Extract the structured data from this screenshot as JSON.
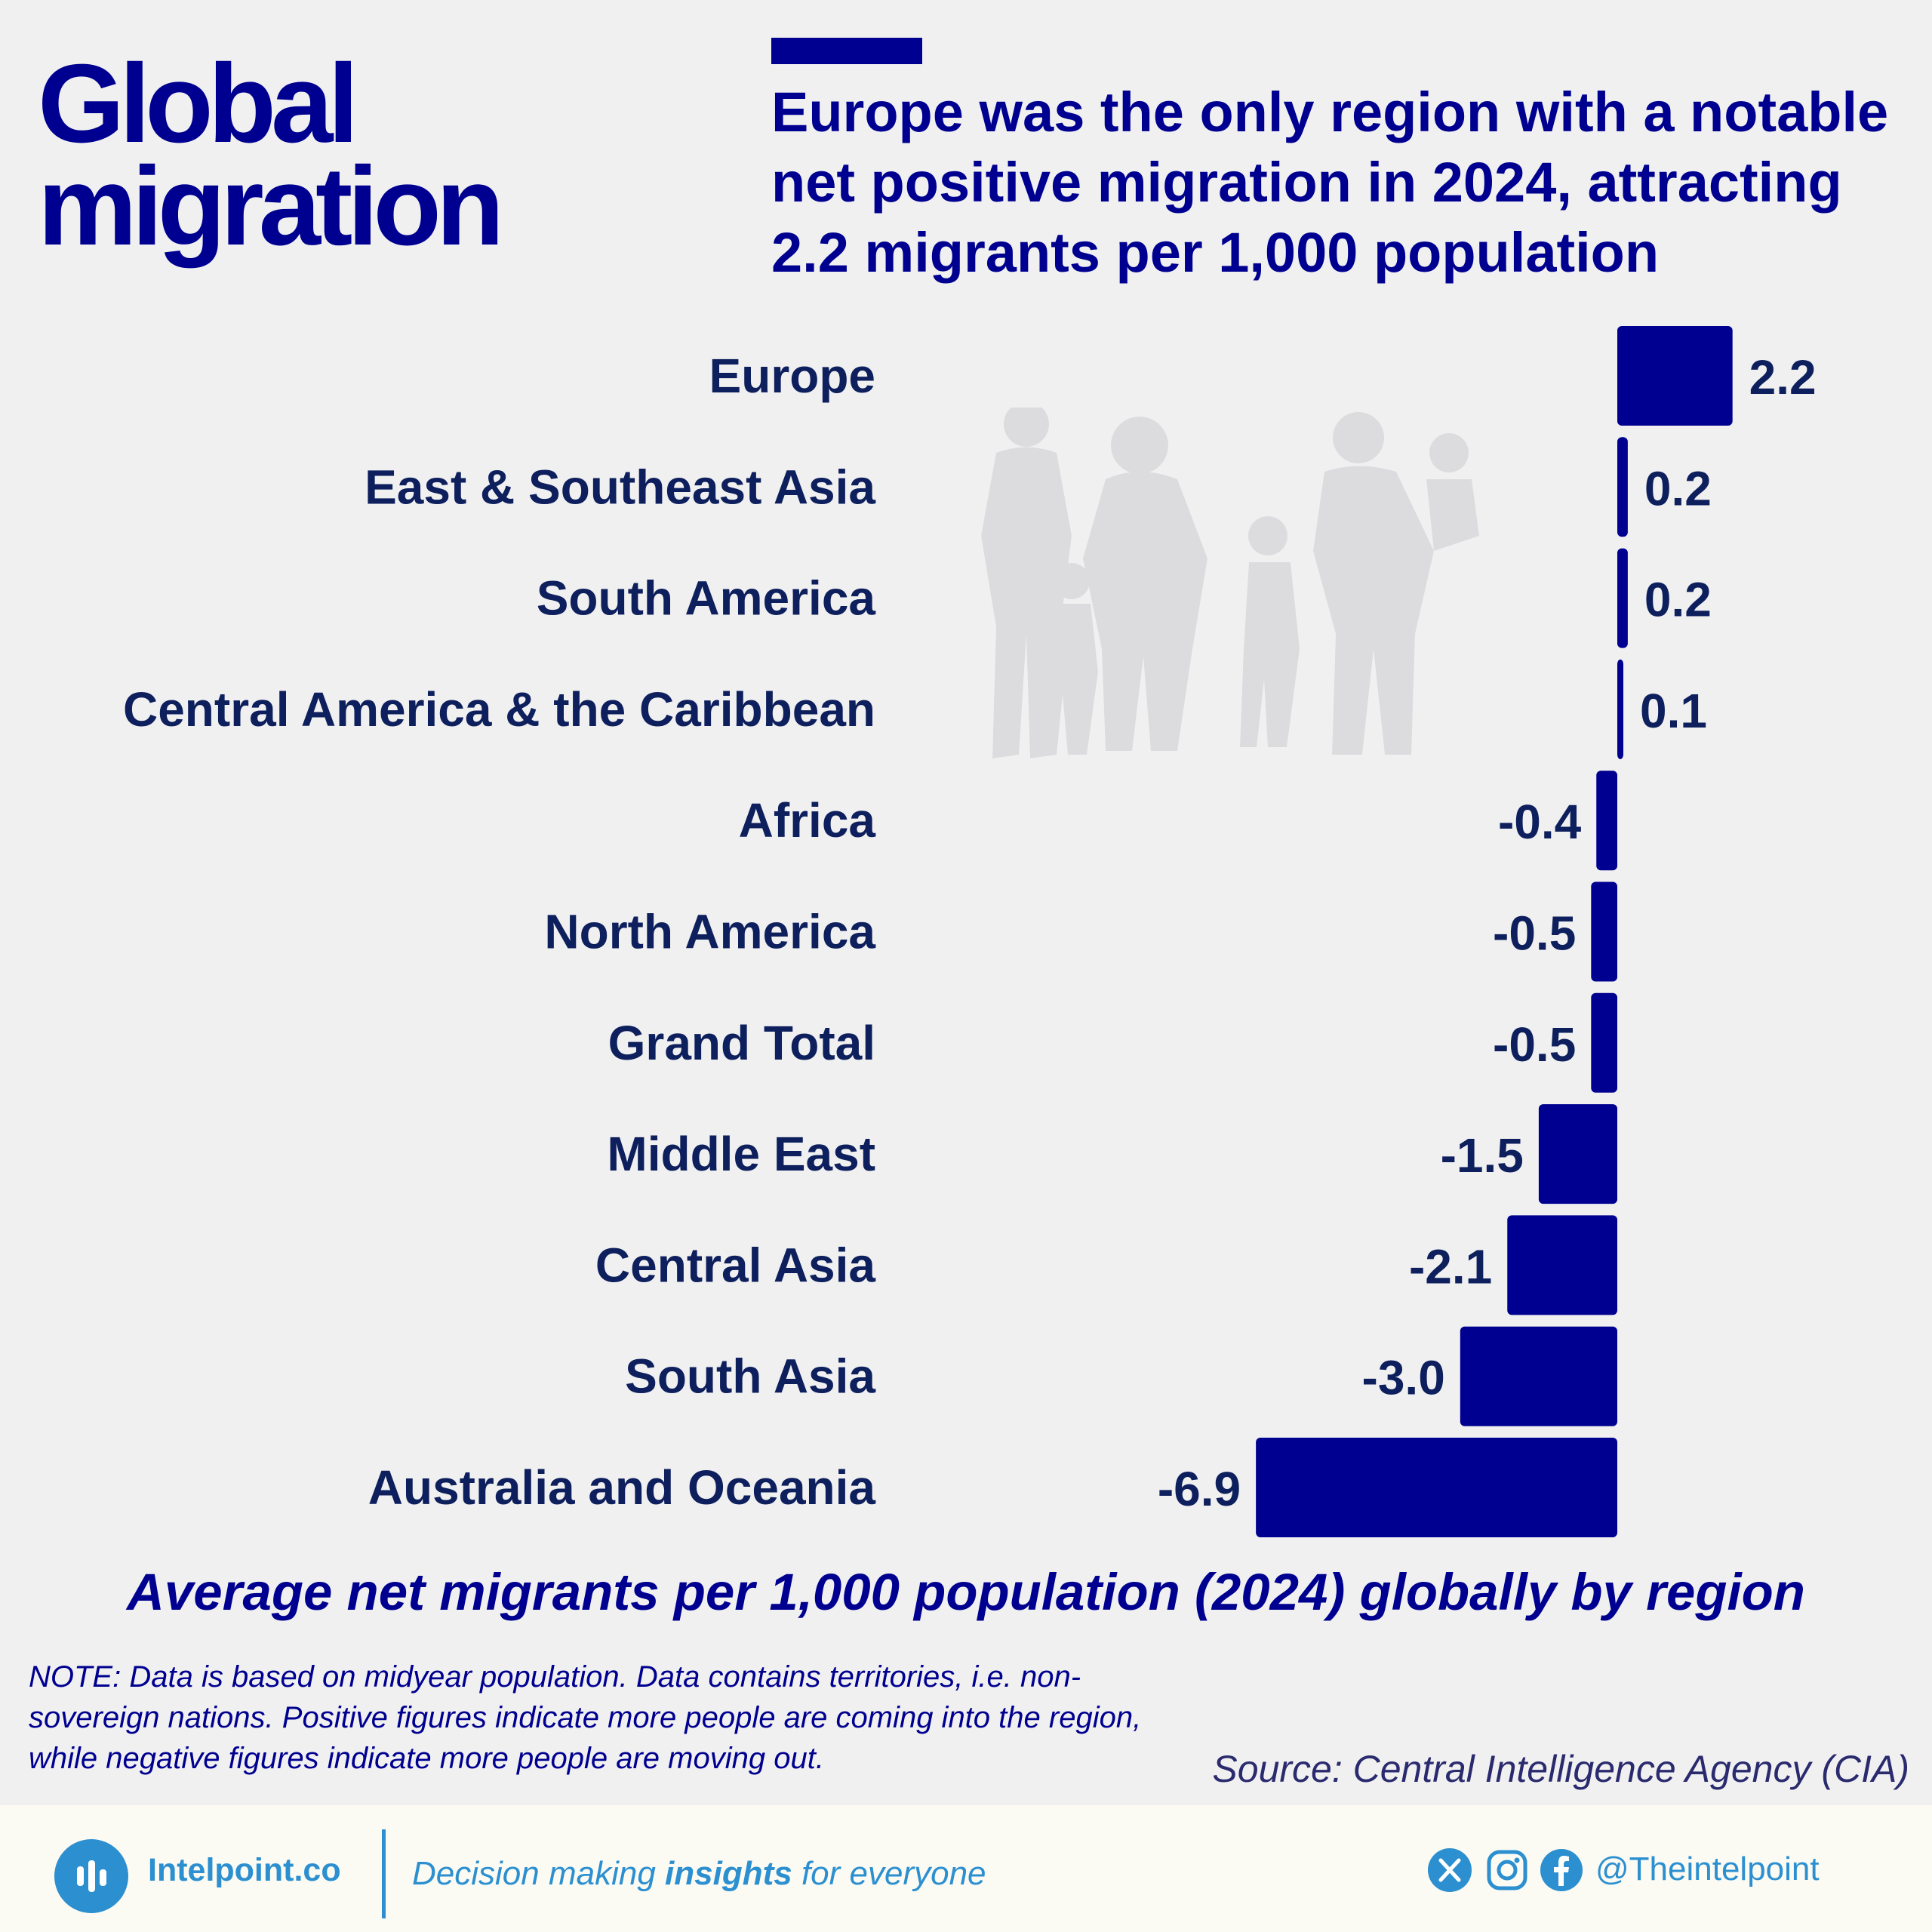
{
  "title": "Global\nmigration",
  "subtitle": "Europe was the only region with a notable net positive migration in 2024, attracting 2.2 migrants per 1,000 population",
  "chart_data": {
    "type": "bar",
    "orientation": "horizontal",
    "categories": [
      "Europe",
      "East & Southeast Asia",
      "South America",
      "Central America & the Caribbean",
      "Africa",
      "North America",
      "Grand Total",
      "Middle East",
      "Central Asia",
      "South Asia",
      "Australia and Oceania"
    ],
    "values": [
      2.2,
      0.2,
      0.2,
      0.1,
      -0.4,
      -0.5,
      -0.5,
      -1.5,
      -2.1,
      -3.0,
      -6.9
    ],
    "value_labels": [
      "2.2",
      "0.2",
      "0.2",
      "0.1",
      "-0.4",
      "-0.5",
      "-0.5",
      "-1.5",
      "-2.1",
      "-3.0",
      "-6.9"
    ],
    "xlim": [
      -6.9,
      2.2
    ],
    "bar_color": "#000090",
    "grid": false,
    "xlabel": "Average net migrants per 1,000 population (2024) globally by region"
  },
  "note": "NOTE: Data is based on midyear population. Data contains territories, i.e. non-sovereign nations. Positive figures indicate more people are coming into the region, while negative figures indicate more people are moving out.",
  "source": "Source: Central Intelligence Agency (CIA)",
  "footer": {
    "brand": "Intelpoint.co",
    "tagline_pre": "Decision making ",
    "tagline_bold": "insights",
    "tagline_post": " for everyone",
    "handle": "@Theintelpoint",
    "icons": [
      "logo-bars-icon",
      "x-icon",
      "instagram-icon",
      "facebook-icon"
    ]
  },
  "colors": {
    "primary": "#000090",
    "accent": "#2c8fd0",
    "background": "#f1f0f1"
  }
}
